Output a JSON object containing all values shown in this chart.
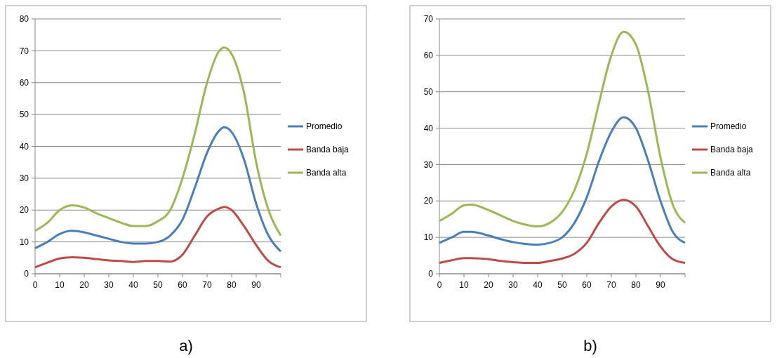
{
  "chart_data": [
    {
      "type": "line",
      "title": "a)",
      "x": [
        0,
        5,
        10,
        15,
        20,
        25,
        30,
        35,
        40,
        45,
        50,
        55,
        60,
        65,
        70,
        75,
        77,
        80,
        85,
        90,
        95,
        100
      ],
      "series": [
        {
          "name": "Promedio",
          "color": "#4a7ebb",
          "values": [
            8,
            10,
            12.5,
            13.5,
            13,
            12,
            11,
            10,
            9.5,
            9.5,
            10,
            12,
            17,
            27,
            38,
            45,
            46,
            44.5,
            36,
            22,
            12,
            7
          ]
        },
        {
          "name": "Banda baja",
          "color": "#be4b48",
          "values": [
            2,
            3.5,
            4.8,
            5.2,
            5,
            4.6,
            4.2,
            4,
            3.7,
            4,
            4,
            3.8,
            6,
            12,
            18,
            20.5,
            21,
            20,
            15,
            9,
            4,
            2
          ]
        },
        {
          "name": "Banda alta",
          "color": "#98b954",
          "values": [
            13.5,
            16,
            20,
            21.5,
            20.8,
            19,
            17.5,
            16,
            15,
            15,
            16.5,
            20,
            30,
            44,
            60,
            70,
            71,
            69,
            57,
            35,
            20,
            12
          ]
        }
      ],
      "xlim": [
        0,
        100
      ],
      "xticks": [
        0,
        10,
        20,
        30,
        40,
        50,
        60,
        70,
        80,
        90,
        {
          "value": 100,
          "label": null
        }
      ],
      "ylim": [
        0,
        80
      ],
      "yticks": [
        0,
        10,
        20,
        30,
        40,
        50,
        60,
        70,
        80
      ],
      "grid": "y",
      "legend": "right",
      "marker": "none",
      "line_style": "solid"
    },
    {
      "type": "line",
      "title": "b)",
      "x": [
        0,
        5,
        10,
        13,
        20,
        25,
        30,
        35,
        40,
        45,
        50,
        55,
        60,
        65,
        70,
        75,
        80,
        85,
        90,
        95,
        100
      ],
      "series": [
        {
          "name": "Promedio",
          "color": "#4a7ebb",
          "values": [
            8.5,
            10,
            11.5,
            11.5,
            10.5,
            9.5,
            8.7,
            8.2,
            8,
            8.5,
            10,
            14,
            21,
            31,
            39,
            43,
            40,
            31,
            20,
            11.5,
            8.5
          ]
        },
        {
          "name": "Banda baja",
          "color": "#be4b48",
          "values": [
            3,
            3.7,
            4.3,
            4.3,
            4,
            3.5,
            3.2,
            3,
            3,
            3.5,
            4.2,
            5.5,
            8.5,
            14,
            18.5,
            20.3,
            18.5,
            13,
            7.5,
            4,
            3
          ]
        },
        {
          "name": "Banda alta",
          "color": "#98b954",
          "values": [
            14.5,
            16.5,
            18.8,
            19,
            17.5,
            16,
            14.5,
            13.5,
            13,
            14,
            17,
            23,
            33,
            47,
            60,
            66.5,
            63,
            50,
            32,
            19,
            14
          ]
        }
      ],
      "xlim": [
        0,
        100
      ],
      "xticks": [
        0,
        10,
        20,
        30,
        40,
        50,
        60,
        70,
        80,
        90,
        {
          "value": 100,
          "label": null
        }
      ],
      "ylim": [
        0,
        70
      ],
      "yticks": [
        0,
        10,
        20,
        30,
        40,
        50,
        60,
        70
      ],
      "grid": "y",
      "legend": "right",
      "marker": "none",
      "line_style": "solid"
    }
  ]
}
